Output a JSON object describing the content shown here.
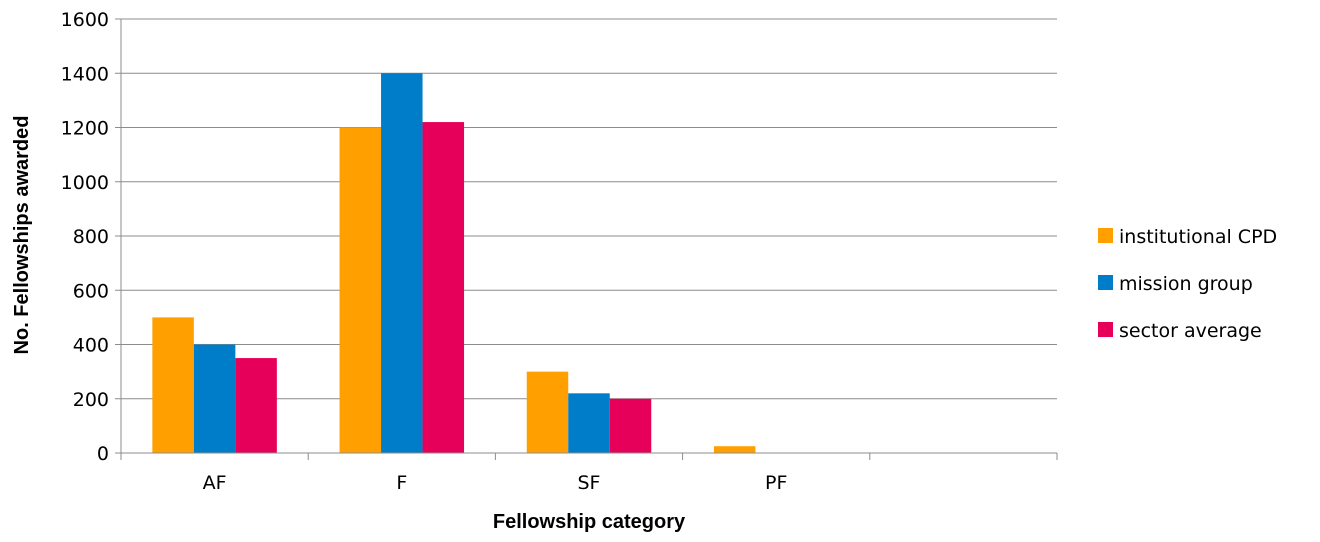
{
  "chart_data": {
    "type": "bar",
    "title": "",
    "xlabel": "Fellowship category",
    "ylabel": "No. Fellowships awarded",
    "ylim": [
      0,
      1600
    ],
    "yticks": [
      "0",
      "200",
      "400",
      "600",
      "800",
      "1000",
      "1200",
      "1400",
      "1600"
    ],
    "categories": [
      "AF",
      "F",
      "SF",
      "PF",
      ""
    ],
    "series": [
      {
        "name": "institutional CPD",
        "color": "#FFA000",
        "values": [
          500,
          1200,
          300,
          25,
          0
        ]
      },
      {
        "name": "mission group",
        "color": "#007DC8",
        "values": [
          400,
          1400,
          220,
          0,
          0
        ]
      },
      {
        "name": "sector average",
        "color": "#E6005A",
        "values": [
          350,
          1220,
          200,
          0,
          0
        ]
      }
    ],
    "grid": true,
    "legend": "right"
  }
}
